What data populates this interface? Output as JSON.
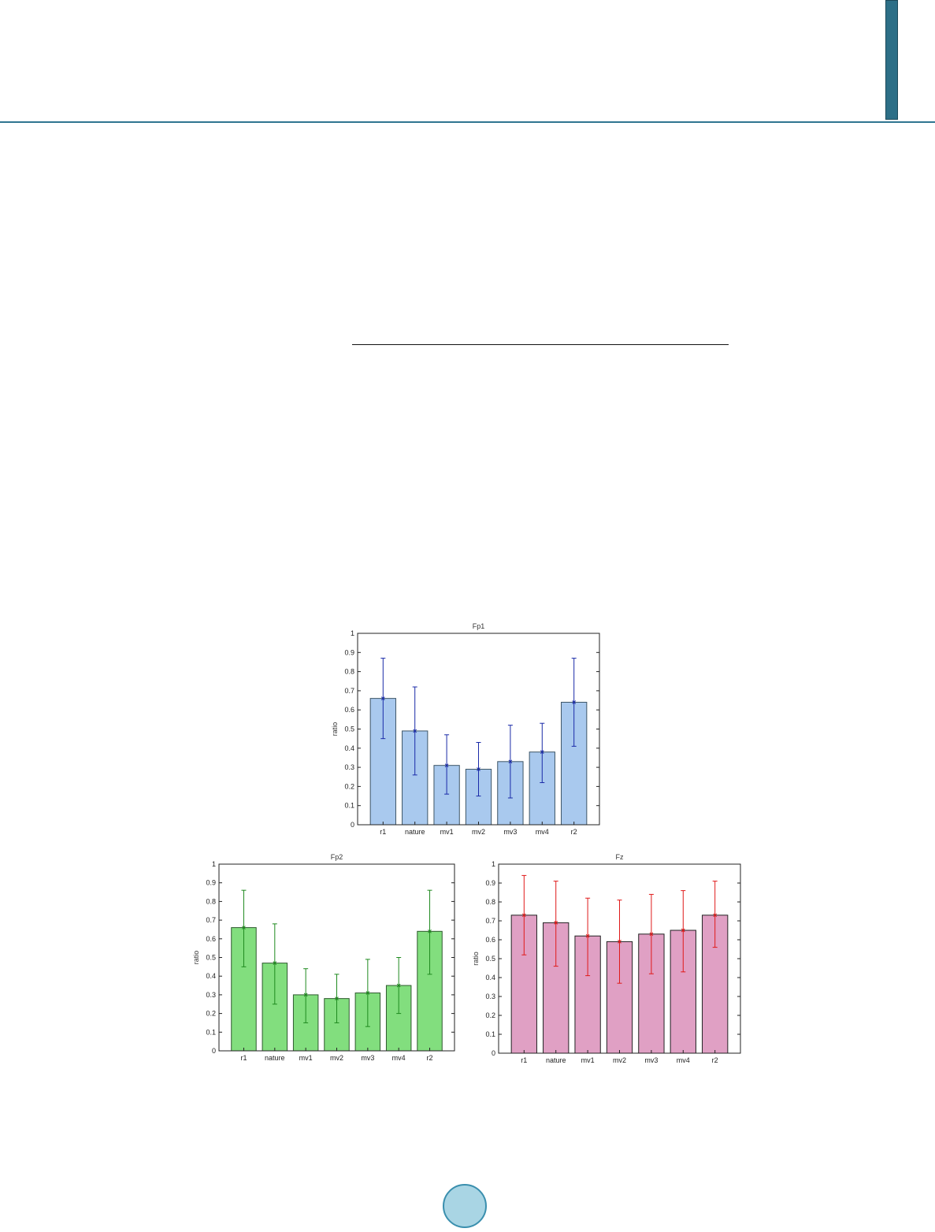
{
  "chart_data": [
    {
      "type": "bar",
      "title": "Fp1",
      "ylabel": "ratio",
      "xlabel": "",
      "categories": [
        "r1",
        "nature",
        "mv1",
        "mv2",
        "mv3",
        "mv4",
        "r2"
      ],
      "values": [
        0.66,
        0.49,
        0.31,
        0.29,
        0.33,
        0.38,
        0.64
      ],
      "error_low": [
        0.45,
        0.26,
        0.16,
        0.15,
        0.14,
        0.22,
        0.41
      ],
      "error_high": [
        0.87,
        0.72,
        0.47,
        0.43,
        0.52,
        0.53,
        0.87
      ],
      "ylim": [
        0,
        1
      ],
      "yticks": [
        "0",
        "0.1",
        "0.2",
        "0.3",
        "0.4",
        "0.5",
        "0.6",
        "0.7",
        "0.8",
        "0.9",
        "1"
      ],
      "bar_color": "#a9c9ee",
      "bar_edge_color": "#3d5566",
      "error_color": "#1a2aa8",
      "grid": false
    },
    {
      "type": "bar",
      "title": "Fp2",
      "ylabel": "ratio",
      "xlabel": "",
      "categories": [
        "r1",
        "nature",
        "mv1",
        "mv2",
        "mv3",
        "mv4",
        "r2"
      ],
      "values": [
        0.66,
        0.47,
        0.3,
        0.28,
        0.31,
        0.35,
        0.64
      ],
      "error_low": [
        0.45,
        0.25,
        0.15,
        0.15,
        0.13,
        0.2,
        0.41
      ],
      "error_high": [
        0.86,
        0.68,
        0.44,
        0.41,
        0.49,
        0.5,
        0.86
      ],
      "ylim": [
        0,
        1
      ],
      "yticks": [
        "0",
        "0.1",
        "0.2",
        "0.3",
        "0.4",
        "0.5",
        "0.6",
        "0.7",
        "0.8",
        "0.9",
        "1"
      ],
      "bar_color": "#82de7e",
      "bar_edge_color": "#2e5a2e",
      "error_color": "#1f8a1f",
      "grid": false
    },
    {
      "type": "bar",
      "title": "Fz",
      "ylabel": "ratio",
      "xlabel": "",
      "categories": [
        "r1",
        "nature",
        "mv1",
        "mv2",
        "mv3",
        "mv4",
        "r2"
      ],
      "values": [
        0.73,
        0.69,
        0.62,
        0.59,
        0.63,
        0.65,
        0.73
      ],
      "error_low": [
        0.52,
        0.46,
        0.41,
        0.37,
        0.42,
        0.43,
        0.56
      ],
      "error_high": [
        0.94,
        0.91,
        0.82,
        0.81,
        0.84,
        0.86,
        0.91
      ],
      "ylim": [
        0,
        1
      ],
      "yticks": [
        "0",
        "0.1",
        "0.2",
        "0.3",
        "0.4",
        "0.5",
        "0.6",
        "0.7",
        "0.8",
        "0.9",
        "1"
      ],
      "bar_color": "#e0a0c4",
      "bar_edge_color": "#222222",
      "error_color": "#e01a1a",
      "grid": false
    }
  ]
}
